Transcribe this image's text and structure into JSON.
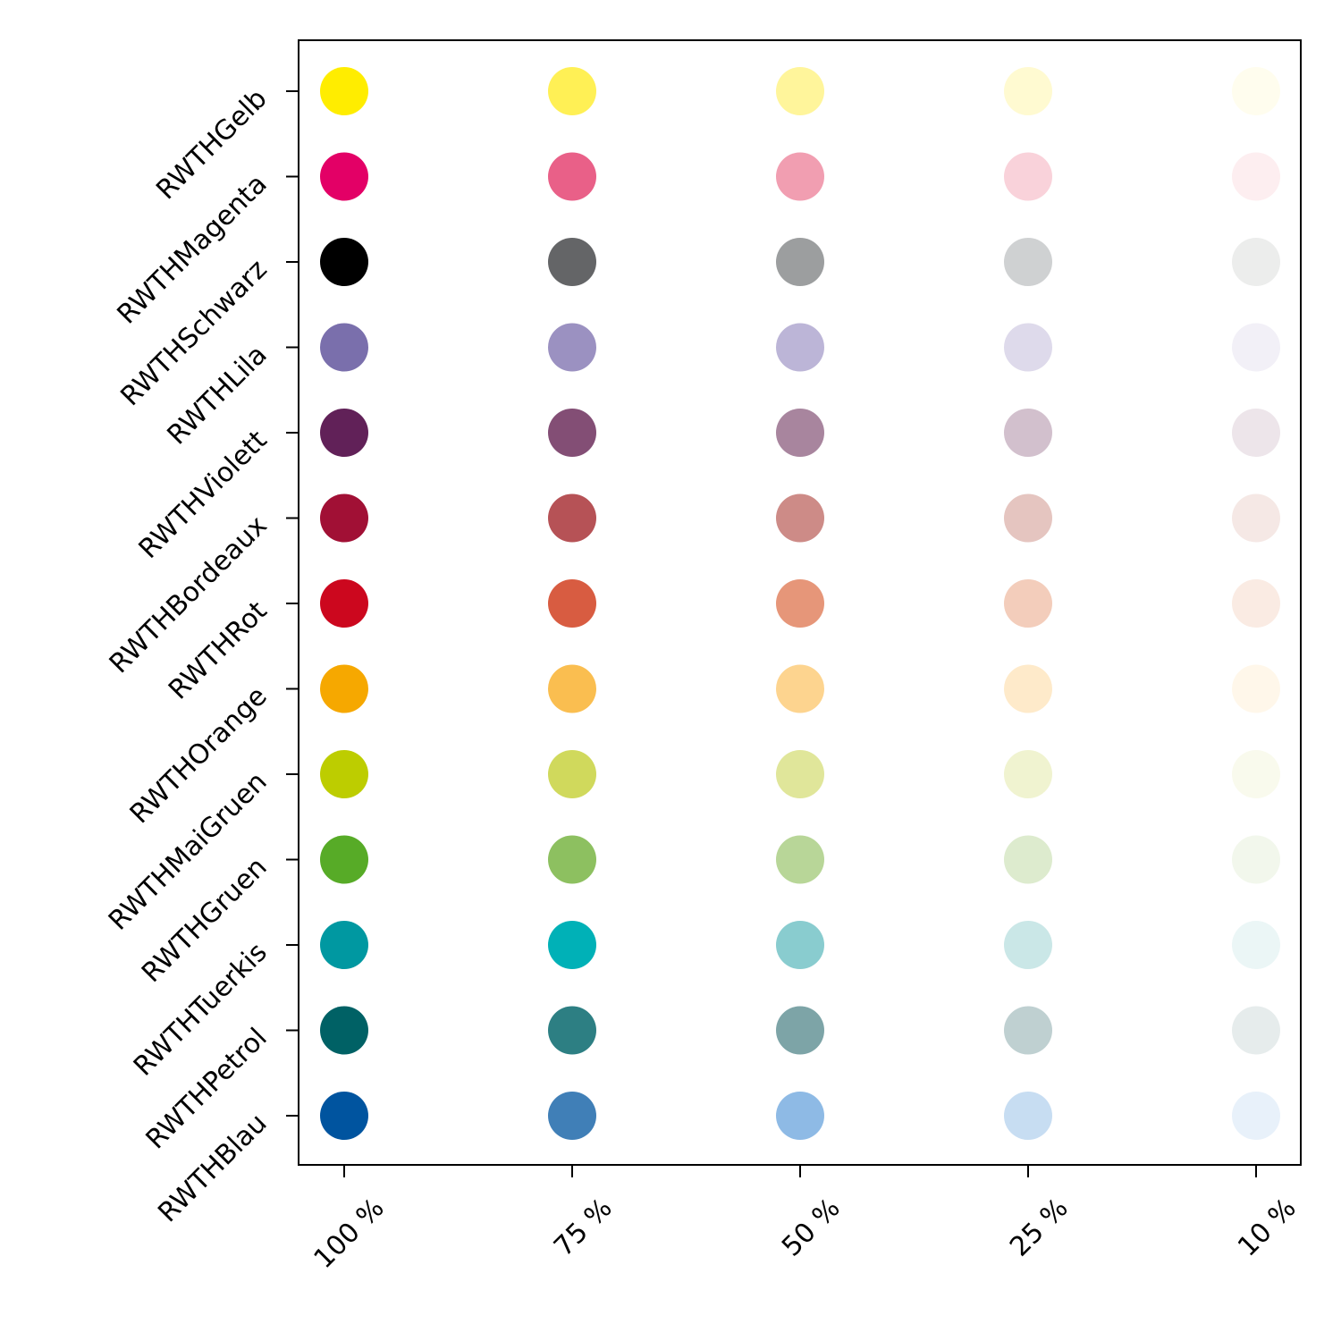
{
  "chart_data": {
    "type": "scatter",
    "title": "",
    "xlabel": "",
    "ylabel": "",
    "x_categories": [
      "100 %",
      "75 %",
      "50 %",
      "25 %",
      "10 %"
    ],
    "y_categories": [
      "RWTHGelb",
      "RWTHMagenta",
      "RWTHSchwarz",
      "RWTHLila",
      "RWTHViolett",
      "RWTHBordeaux",
      "RWTHRot",
      "RWTHOrange",
      "RWTHMaiGruen",
      "RWTHGruen",
      "RWTHTuerkis",
      "RWTHPetrol",
      "RWTHBlau"
    ],
    "grid": false,
    "legend": "none",
    "colors": [
      [
        "#ffed00",
        "#fff055",
        "#fff59b",
        "#fffad1",
        "#fffdee"
      ],
      [
        "#e30066",
        "#e96088",
        "#f19eb1",
        "#f9d2da",
        "#fdeef0"
      ],
      [
        "#000000",
        "#646567",
        "#9c9e9f",
        "#cfd1d2",
        "#ecedec"
      ],
      [
        "#7a6fac",
        "#9b91c1",
        "#bcb5d7",
        "#dedaeb",
        "#f2f0f7"
      ],
      [
        "#612158",
        "#834e75",
        "#a8859e",
        "#d2c0cd",
        "#ede5ea"
      ],
      [
        "#a11035",
        "#b65256",
        "#cd8b87",
        "#e5c5c0",
        "#f5e8e5"
      ],
      [
        "#cc071e",
        "#d85c41",
        "#e69679",
        "#f3cdbb",
        "#faebe3"
      ],
      [
        "#f6a800",
        "#fabe50",
        "#fdd48f",
        "#feeaca",
        "#fff7ea"
      ],
      [
        "#bdcd00",
        "#d0d95c",
        "#e0e69a",
        "#f0f3d0",
        "#f9faed"
      ],
      [
        "#57ab27",
        "#8dc060",
        "#b8d698",
        "#ddebce",
        "#f2f7ec"
      ],
      [
        "#0098a1",
        "#00b1b7",
        "#89cccf",
        "#cae7e7",
        "#ebf6f6"
      ],
      [
        "#006165",
        "#2d7f83",
        "#7da4a7",
        "#bfd0d1",
        "#e6ecec"
      ],
      [
        "#00549f",
        "#407fb7",
        "#8ebae5",
        "#c7ddf2",
        "#e8f1fa"
      ]
    ]
  }
}
